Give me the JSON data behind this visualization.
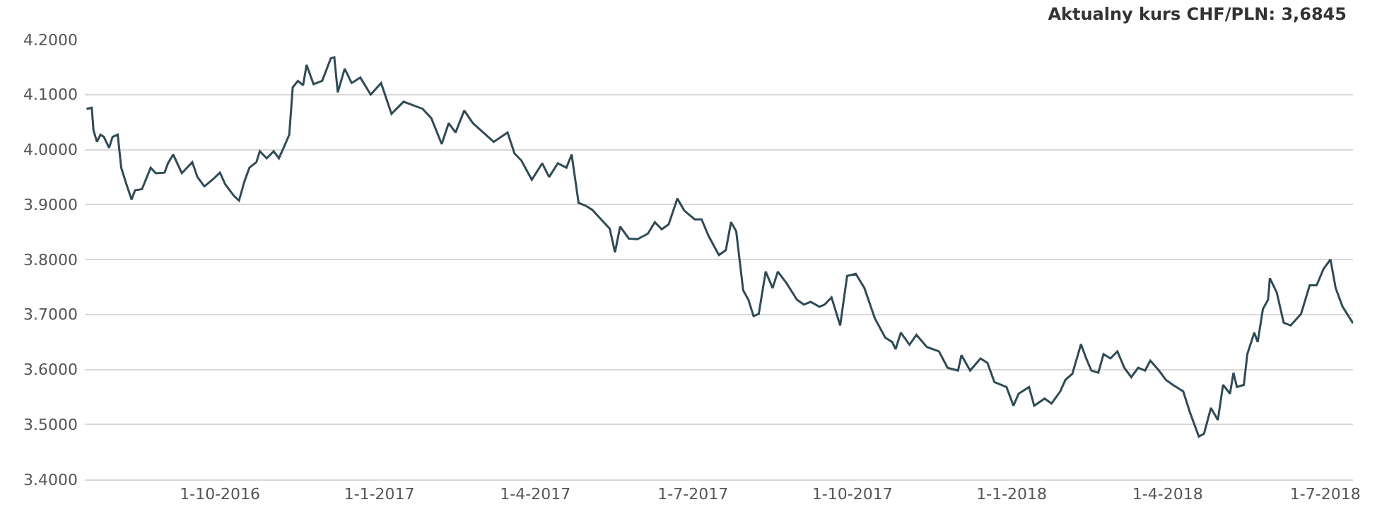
{
  "chart_data": {
    "type": "line",
    "title": "Aktualny kurs CHF/PLN: 3,6845",
    "x": [
      "2016-07-16",
      "2016-07-19",
      "2016-07-20",
      "2016-07-22",
      "2016-07-24",
      "2016-07-26",
      "2016-07-29",
      "2016-07-31",
      "2016-08-03",
      "2016-08-05",
      "2016-08-08",
      "2016-08-11",
      "2016-08-13",
      "2016-08-17",
      "2016-08-22",
      "2016-08-25",
      "2016-08-30",
      "2016-09-01",
      "2016-09-04",
      "2016-09-09",
      "2016-09-15",
      "2016-09-18",
      "2016-09-22",
      "2016-09-27",
      "2016-10-01",
      "2016-10-04",
      "2016-10-09",
      "2016-10-12",
      "2016-10-15",
      "2016-10-18",
      "2016-10-22",
      "2016-10-24",
      "2016-10-28",
      "2016-11-01",
      "2016-11-04",
      "2016-11-07",
      "2016-11-10",
      "2016-11-12",
      "2016-11-15",
      "2016-11-18",
      "2016-11-20",
      "2016-11-24",
      "2016-11-29",
      "2016-12-04",
      "2016-12-06",
      "2016-12-08",
      "2016-12-12",
      "2016-12-16",
      "2016-12-21",
      "2016-12-27",
      "2017-01-02",
      "2017-01-08",
      "2017-01-15",
      "2017-01-26",
      "2017-01-31",
      "2017-02-06",
      "2017-02-10",
      "2017-02-14",
      "2017-02-19",
      "2017-02-24",
      "2017-03-02",
      "2017-03-08",
      "2017-03-16",
      "2017-03-20",
      "2017-03-24",
      "2017-03-30",
      "2017-04-05",
      "2017-04-09",
      "2017-04-14",
      "2017-04-19",
      "2017-04-22",
      "2017-04-26",
      "2017-04-30",
      "2017-05-04",
      "2017-05-09",
      "2017-05-14",
      "2017-05-17",
      "2017-05-20",
      "2017-05-25",
      "2017-05-30",
      "2017-06-05",
      "2017-06-09",
      "2017-06-13",
      "2017-06-17",
      "2017-06-22",
      "2017-06-26",
      "2017-07-02",
      "2017-07-06",
      "2017-07-10",
      "2017-07-16",
      "2017-07-20",
      "2017-07-23",
      "2017-07-26",
      "2017-07-30",
      "2017-08-02",
      "2017-08-05",
      "2017-08-08",
      "2017-08-12",
      "2017-08-16",
      "2017-08-19",
      "2017-08-24",
      "2017-08-30",
      "2017-09-03",
      "2017-09-07",
      "2017-09-12",
      "2017-09-15",
      "2017-09-19",
      "2017-09-24",
      "2017-09-28",
      "2017-10-03",
      "2017-10-08",
      "2017-10-14",
      "2017-10-20",
      "2017-10-24",
      "2017-10-26",
      "2017-10-29",
      "2017-11-03",
      "2017-11-07",
      "2017-11-13",
      "2017-11-20",
      "2017-11-25",
      "2017-12-01",
      "2017-12-03",
      "2017-12-08",
      "2017-12-14",
      "2017-12-18",
      "2017-12-22",
      "2017-12-29",
      "2018-01-02",
      "2018-01-05",
      "2018-01-11",
      "2018-01-14",
      "2018-01-20",
      "2018-01-24",
      "2018-01-29",
      "2018-02-01",
      "2018-02-05",
      "2018-02-10",
      "2018-02-13",
      "2018-02-16",
      "2018-02-20",
      "2018-02-23",
      "2018-02-27",
      "2018-03-03",
      "2018-03-07",
      "2018-03-11",
      "2018-03-15",
      "2018-03-19",
      "2018-03-22",
      "2018-03-27",
      "2018-03-31",
      "2018-04-04",
      "2018-04-10",
      "2018-04-14",
      "2018-04-19",
      "2018-04-22",
      "2018-04-26",
      "2018-04-30",
      "2018-05-03",
      "2018-05-07",
      "2018-05-09",
      "2018-05-11",
      "2018-05-15",
      "2018-05-17",
      "2018-05-21",
      "2018-05-23",
      "2018-05-26",
      "2018-05-29",
      "2018-05-30",
      "2018-06-03",
      "2018-06-07",
      "2018-06-11",
      "2018-06-17",
      "2018-06-22",
      "2018-06-26",
      "2018-06-30",
      "2018-07-04",
      "2018-07-07",
      "2018-07-11",
      "2018-07-17"
    ],
    "series": [
      {
        "color": "#2f4b55",
        "values": [
          4.074,
          4.076,
          4.035,
          4.014,
          4.027,
          4.023,
          4.003,
          4.023,
          4.027,
          3.967,
          3.937,
          3.909,
          3.926,
          3.928,
          3.967,
          3.957,
          3.958,
          3.975,
          3.991,
          3.957,
          3.977,
          3.95,
          3.933,
          3.946,
          3.958,
          3.937,
          3.916,
          3.907,
          3.941,
          3.967,
          3.977,
          3.997,
          3.984,
          3.997,
          3.984,
          4.005,
          4.027,
          4.113,
          4.125,
          4.117,
          4.154,
          4.119,
          4.125,
          4.166,
          4.168,
          4.104,
          4.147,
          4.121,
          4.131,
          4.1,
          4.121,
          4.065,
          4.087,
          4.074,
          4.057,
          4.01,
          4.048,
          4.031,
          4.071,
          4.048,
          4.031,
          4.014,
          4.031,
          3.993,
          3.98,
          3.945,
          3.975,
          3.95,
          3.975,
          3.967,
          3.991,
          3.903,
          3.898,
          3.89,
          3.873,
          3.856,
          3.813,
          3.86,
          3.838,
          3.837,
          3.847,
          3.868,
          3.855,
          3.864,
          3.911,
          3.889,
          3.873,
          3.873,
          3.843,
          3.808,
          3.817,
          3.868,
          3.851,
          3.744,
          3.727,
          3.697,
          3.701,
          3.778,
          3.748,
          3.778,
          3.757,
          3.727,
          3.718,
          3.723,
          3.714,
          3.718,
          3.731,
          3.68,
          3.77,
          3.774,
          3.748,
          3.693,
          3.658,
          3.65,
          3.637,
          3.667,
          3.645,
          3.663,
          3.641,
          3.633,
          3.603,
          3.598,
          3.626,
          3.598,
          3.62,
          3.612,
          3.577,
          3.568,
          3.534,
          3.556,
          3.568,
          3.534,
          3.547,
          3.538,
          3.56,
          3.581,
          3.592,
          3.646,
          3.62,
          3.598,
          3.594,
          3.628,
          3.62,
          3.633,
          3.603,
          3.586,
          3.603,
          3.598,
          3.616,
          3.598,
          3.581,
          3.572,
          3.56,
          3.521,
          3.478,
          3.483,
          3.53,
          3.508,
          3.572,
          3.556,
          3.594,
          3.568,
          3.572,
          3.628,
          3.667,
          3.65,
          3.71,
          3.727,
          3.766,
          3.74,
          3.685,
          3.68,
          3.701,
          3.753,
          3.753,
          3.783,
          3.8,
          3.748,
          3.714,
          3.684
        ]
      }
    ],
    "xlim": [
      "2016-07-15",
      "2018-07-17"
    ],
    "xticks": [
      {
        "value": "2016-10-01",
        "label": "1-10-2016"
      },
      {
        "value": "2017-01-01",
        "label": "1-1-2017"
      },
      {
        "value": "2017-04-01",
        "label": "1-4-2017"
      },
      {
        "value": "2017-07-01",
        "label": "1-7-2017"
      },
      {
        "value": "2017-10-01",
        "label": "1-10-2017"
      },
      {
        "value": "2018-01-01",
        "label": "1-1-2018"
      },
      {
        "value": "2018-04-01",
        "label": "1-4-2018"
      },
      {
        "value": "2018-07-01",
        "label": "1-7-2018"
      }
    ],
    "ylim": [
      3.4,
      4.2
    ],
    "yticks": [
      {
        "value": 3.4,
        "label": "3.4000"
      },
      {
        "value": 3.5,
        "label": "3.5000"
      },
      {
        "value": 3.6,
        "label": "3.6000"
      },
      {
        "value": 3.7,
        "label": "3.7000"
      },
      {
        "value": 3.8,
        "label": "3.8000"
      },
      {
        "value": 3.9,
        "label": "3.9000"
      },
      {
        "value": 4.0,
        "label": "4.0000"
      },
      {
        "value": 4.1,
        "label": "4.1000"
      },
      {
        "value": 4.2,
        "label": "4.2000"
      }
    ],
    "grid": "y",
    "marker": "none",
    "line_style": "solid"
  }
}
